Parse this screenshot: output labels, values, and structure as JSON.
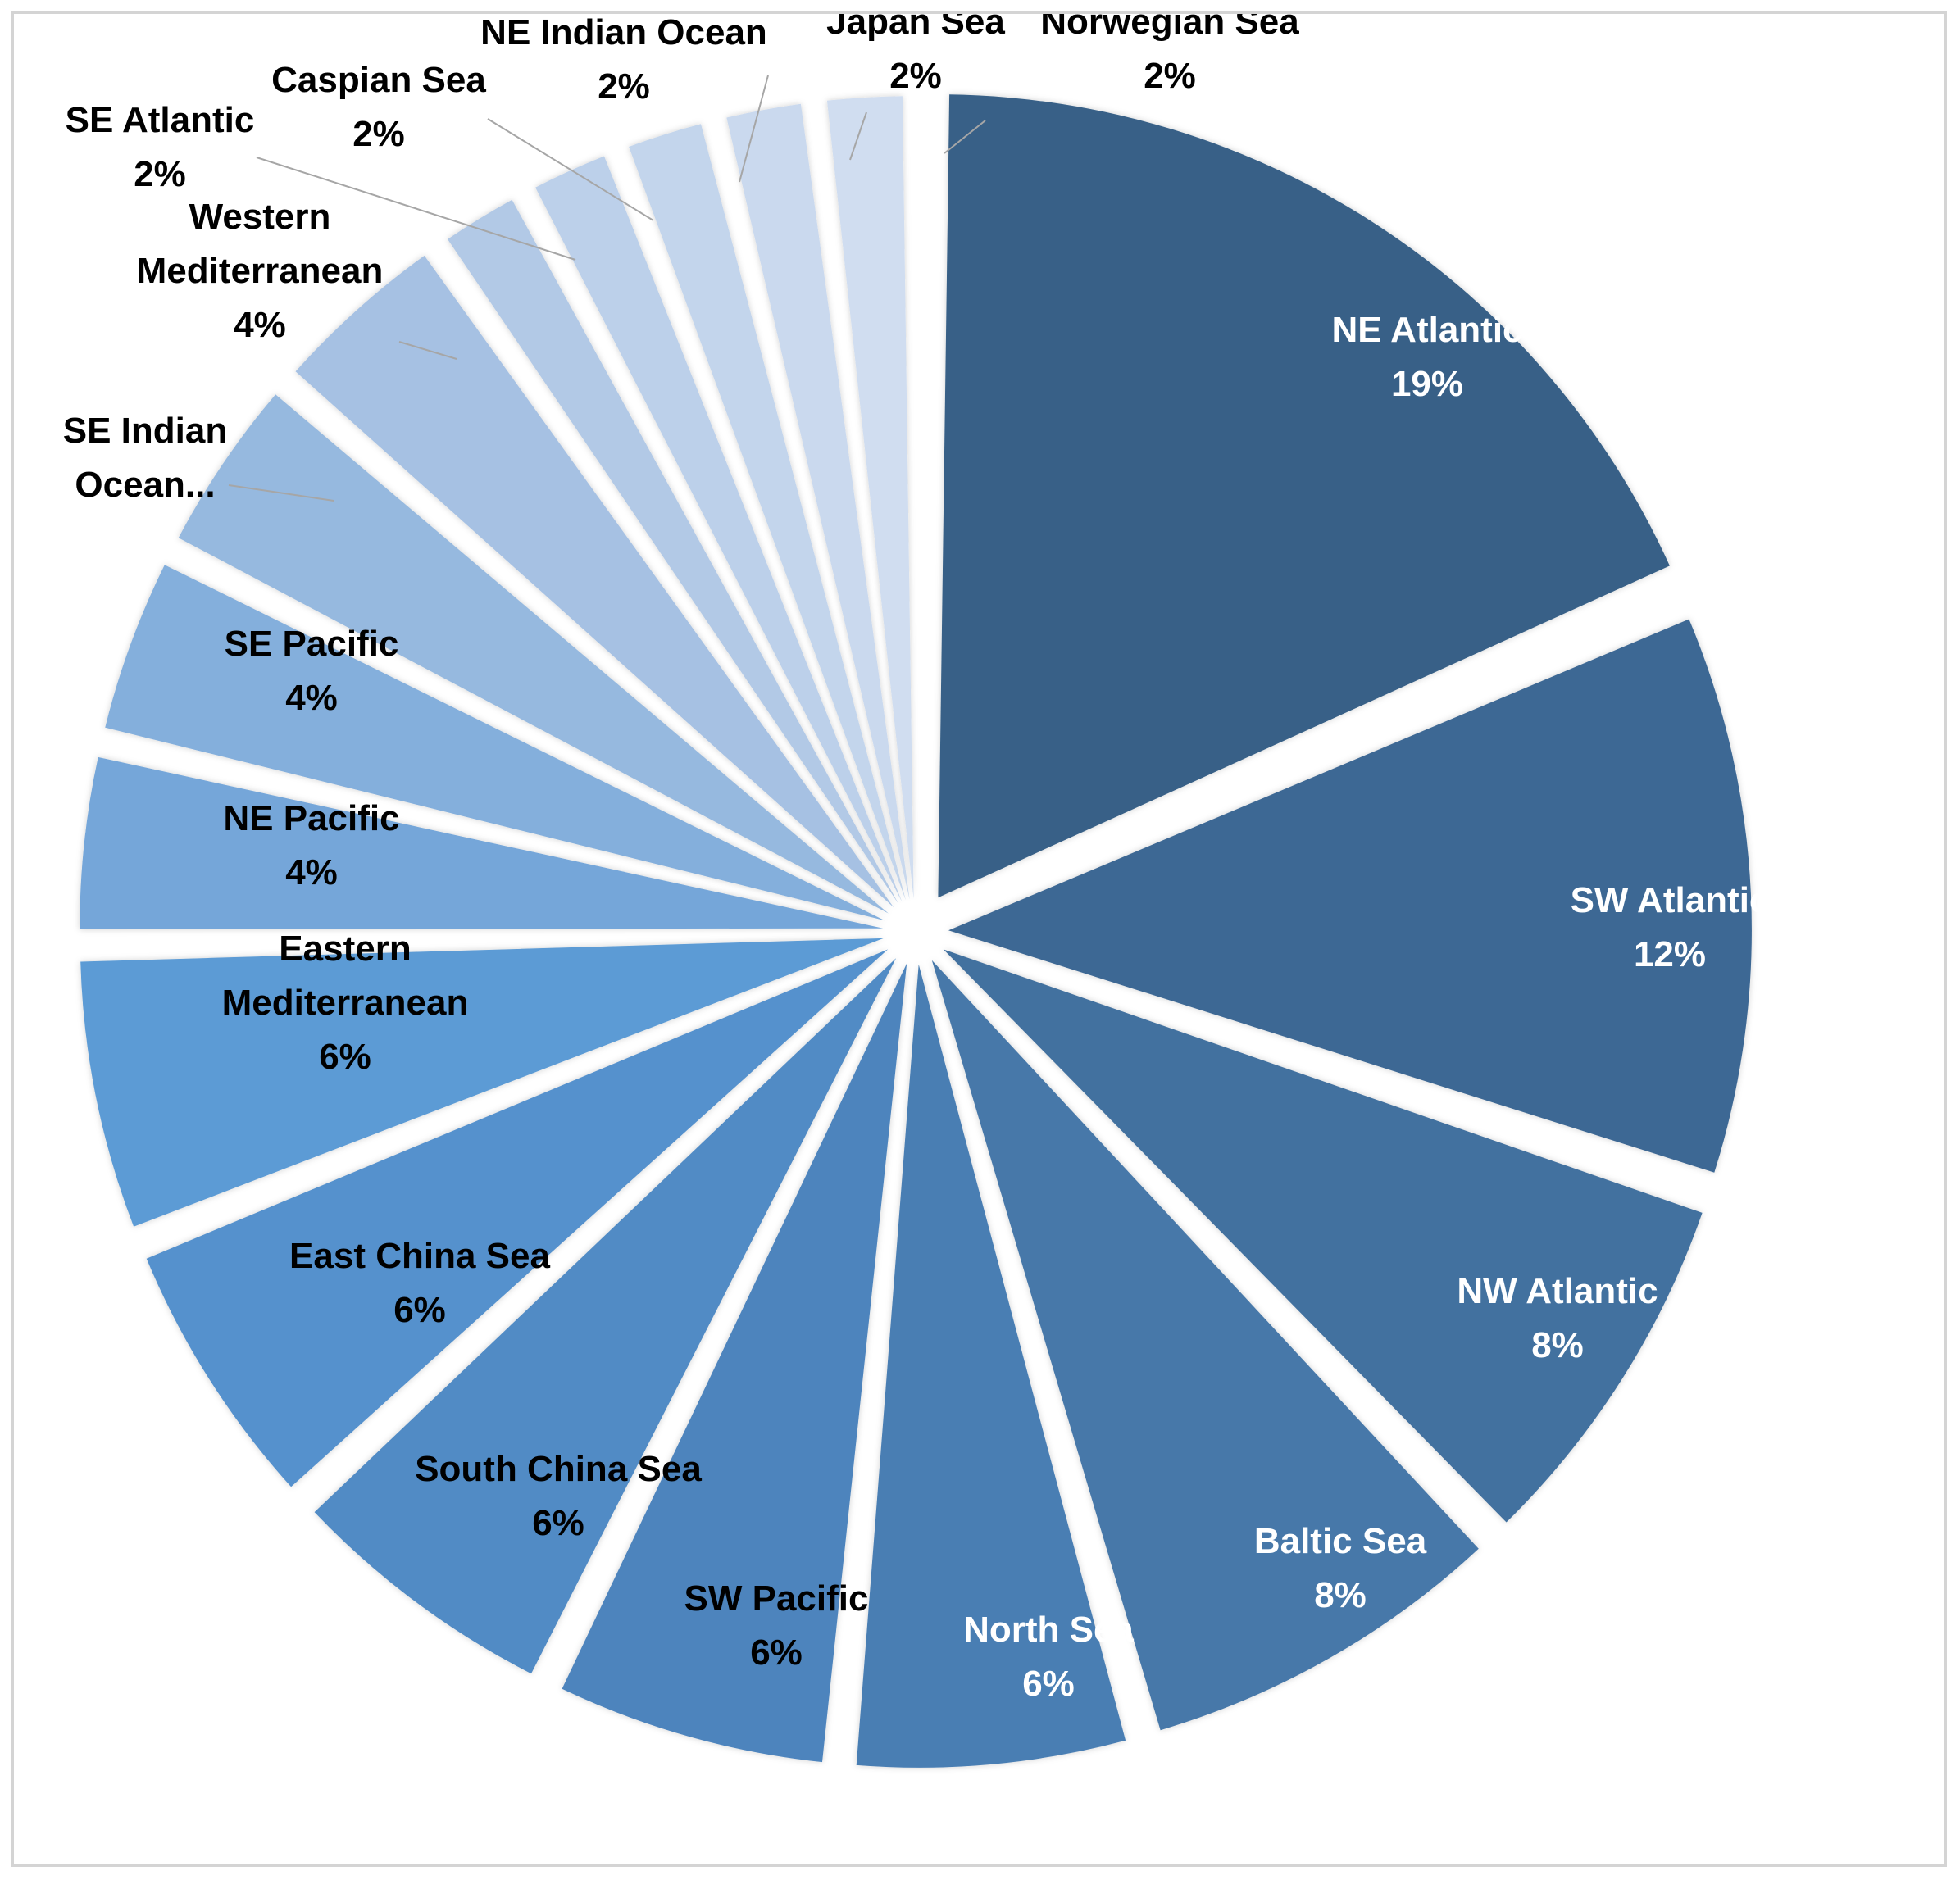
{
  "chart_data": {
    "type": "pie",
    "title": "",
    "slices": [
      {
        "label": "NE Atlantic",
        "value": 19,
        "display": "19%",
        "color": "#376187",
        "label_color": "#ffffff",
        "exploded": true
      },
      {
        "label": "SW Atlantic",
        "value": 12,
        "display": "12%",
        "color": "#3e6894",
        "label_color": "#ffffff",
        "exploded": true
      },
      {
        "label": "NW Atlantic",
        "value": 8,
        "display": "8%",
        "color": "#43719f",
        "label_color": "#ffffff",
        "exploded": true
      },
      {
        "label": "Baltic Sea",
        "value": 8,
        "display": "8%",
        "color": "#4778a9",
        "label_color": "#ffffff",
        "exploded": true
      },
      {
        "label": "North Sea",
        "value": 6,
        "display": "6%",
        "color": "#4a7eb3",
        "label_color": "#ffffff",
        "exploded": true
      },
      {
        "label": "SW Pacific",
        "value": 6,
        "display": "6%",
        "color": "#4d84bd",
        "label_color": "#000000",
        "exploded": true
      },
      {
        "label": "South China Sea",
        "value": 6,
        "display": "6%",
        "color": "#518bc5",
        "label_color": "#000000",
        "exploded": true
      },
      {
        "label": "East China Sea",
        "value": 6,
        "display": "6%",
        "color": "#5591cd",
        "label_color": "#000000",
        "exploded": true
      },
      {
        "label": "Eastern Mediterranean",
        "value": 6,
        "display": "6%",
        "color": "#5b9bd5",
        "label_color": "#000000",
        "exploded": true
      },
      {
        "label": "NE Pacific",
        "value": 4,
        "display": "4%",
        "color": "#74a6d9",
        "label_color": "#000000",
        "exploded": true
      },
      {
        "label": "SE Pacific",
        "value": 4,
        "display": "4%",
        "color": "#84afdc",
        "label_color": "#000000",
        "exploded": true
      },
      {
        "label": "SE Indian Ocean...",
        "value": 4,
        "display": "",
        "color": "#96b9df",
        "label_color": "#000000",
        "exploded": true
      },
      {
        "label": "Western Mediterranean",
        "value": 4,
        "display": "4%",
        "color": "#a6c1e3",
        "label_color": "#000000",
        "exploded": true
      },
      {
        "label": "SE Atlantic",
        "value": 2,
        "display": "2%",
        "color": "#b2c9e6",
        "label_color": "#000000",
        "exploded": true
      },
      {
        "label": "Caspian Sea",
        "value": 2,
        "display": "2%",
        "color": "#bcd0ea",
        "label_color": "#000000",
        "exploded": true
      },
      {
        "label": "NE Indian Ocean",
        "value": 2,
        "display": "2%",
        "color": "#c3d5ec",
        "label_color": "#000000",
        "exploded": true
      },
      {
        "label": "Japan Sea",
        "value": 2,
        "display": "2%",
        "color": "#cad9ee",
        "label_color": "#000000",
        "exploded": true
      },
      {
        "label": "Norwegian Sea",
        "value": 2,
        "display": "2%",
        "color": "#d0ddf0",
        "label_color": "#000000",
        "exploded": true
      }
    ],
    "legend": "none",
    "data_labels": "category-and-percentage"
  }
}
